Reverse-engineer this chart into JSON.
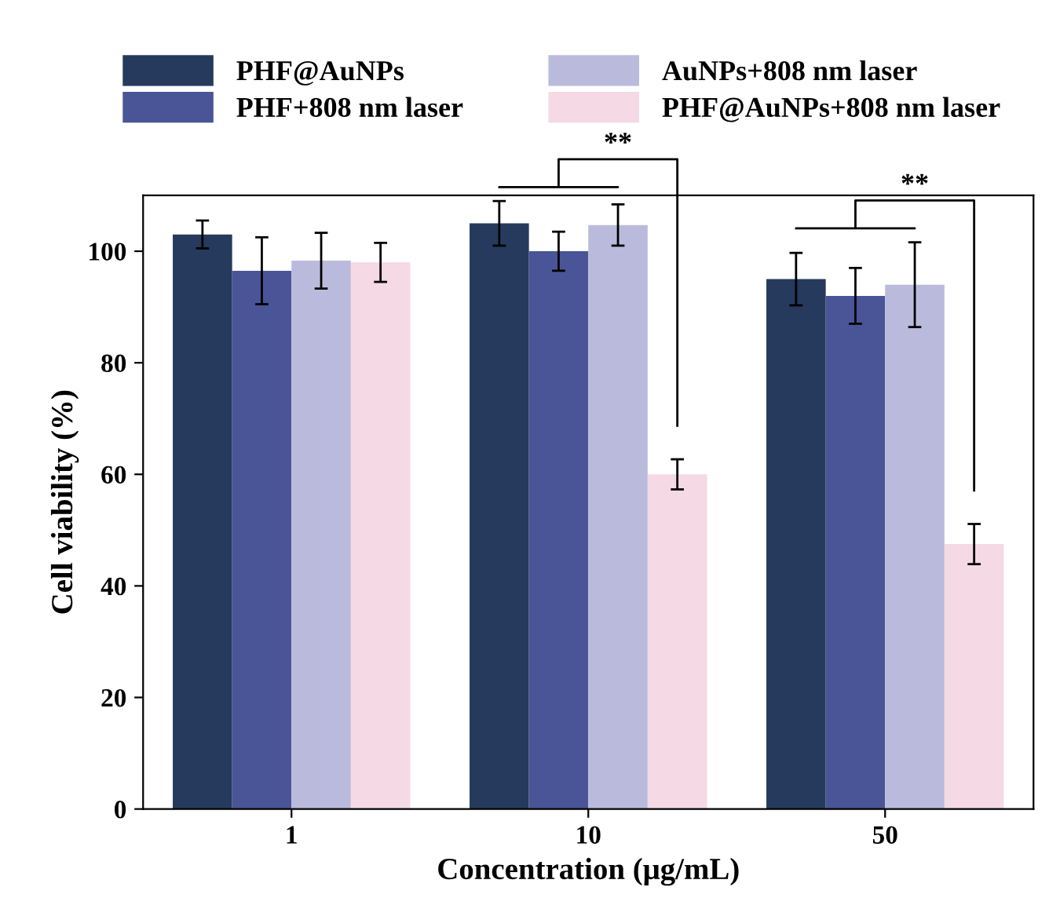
{
  "chart_data": {
    "type": "bar",
    "xlabel": "Concentration (μg/mL)",
    "ylabel": "Cell viability (%)",
    "categories": [
      "1",
      "10",
      "50"
    ],
    "series": [
      {
        "name": "PHF@AuNPs",
        "color": "#253a5c",
        "values": [
          103,
          105,
          95
        ],
        "errors": [
          2.5,
          4,
          4.7
        ]
      },
      {
        "name": "PHF+808 nm laser",
        "color": "#4a5597",
        "values": [
          96.5,
          100,
          92
        ],
        "errors": [
          6,
          3.5,
          5
        ]
      },
      {
        "name": "AuNPs+808 nm laser",
        "color": "#babbdc",
        "values": [
          98.3,
          104.7,
          94
        ],
        "errors": [
          5,
          3.7,
          7.6
        ]
      },
      {
        "name": "PHF@AuNPs+808 nm laser",
        "color": "#f5d9e4",
        "values": [
          98,
          60,
          47.5
        ],
        "errors": [
          3.5,
          2.7,
          3.6
        ]
      }
    ],
    "ylim": [
      0,
      110
    ],
    "yticks": [
      0,
      20,
      40,
      60,
      80,
      100
    ],
    "grid": false,
    "legend": "top",
    "annotations": [
      "**",
      "**"
    ]
  }
}
